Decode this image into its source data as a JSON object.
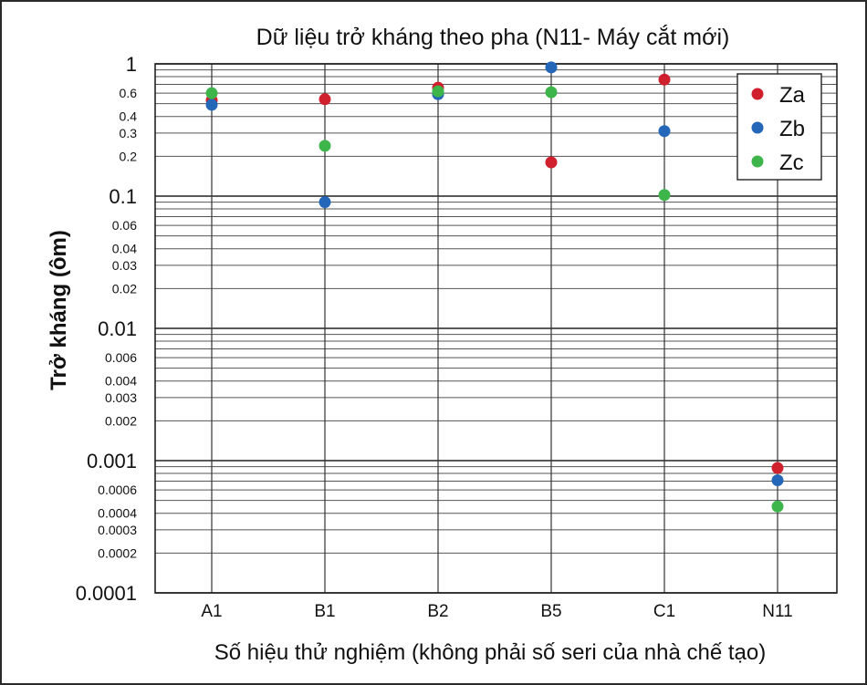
{
  "chart_data": {
    "type": "scatter",
    "title": "Dữ liệu trở kháng theo pha (N11- Máy cắt mới)",
    "xlabel": "Số hiệu thử nghiệm (không phải số seri của nhà chế tạo)",
    "ylabel": "Trở kháng (ôm)",
    "y_scale": "log",
    "ylim": [
      0.0001,
      1
    ],
    "categories": [
      "A1",
      "B1",
      "B2",
      "B5",
      "C1",
      "N11"
    ],
    "y_ticks_major": [
      {
        "value": 1,
        "label": "1"
      },
      {
        "value": 0.1,
        "label": "0.1"
      },
      {
        "value": 0.01,
        "label": "0.01"
      },
      {
        "value": 0.001,
        "label": "0.001"
      },
      {
        "value": 0.0001,
        "label": "0.0001"
      }
    ],
    "y_ticks_minor": [
      {
        "value": 0.6,
        "label": "0.6"
      },
      {
        "value": 0.4,
        "label": "0.4"
      },
      {
        "value": 0.3,
        "label": "0.3"
      },
      {
        "value": 0.2,
        "label": "0.2"
      },
      {
        "value": 0.06,
        "label": "0.06"
      },
      {
        "value": 0.04,
        "label": "0.04"
      },
      {
        "value": 0.03,
        "label": "0.03"
      },
      {
        "value": 0.02,
        "label": "0.02"
      },
      {
        "value": 0.006,
        "label": "0.006"
      },
      {
        "value": 0.004,
        "label": "0.004"
      },
      {
        "value": 0.003,
        "label": "0.003"
      },
      {
        "value": 0.002,
        "label": "0.002"
      },
      {
        "value": 0.0006,
        "label": "0.0006"
      },
      {
        "value": 0.0004,
        "label": "0.0004"
      },
      {
        "value": 0.0003,
        "label": "0.0003"
      },
      {
        "value": 0.0002,
        "label": "0.0002"
      }
    ],
    "grid": "horizontal lines at 1-9 per decade, vertical line per category",
    "legend_position": "top-right",
    "series": [
      {
        "name": "Za",
        "color": "#d0202e",
        "values": [
          0.53,
          0.54,
          0.66,
          0.18,
          0.76,
          0.00088
        ]
      },
      {
        "name": "Zb",
        "color": "#2466b8",
        "values": [
          0.49,
          0.09,
          0.59,
          0.94,
          0.31,
          0.00071
        ]
      },
      {
        "name": "Zc",
        "color": "#3db54a",
        "values": [
          0.6,
          0.24,
          0.62,
          0.61,
          0.102,
          0.00045
        ]
      }
    ]
  }
}
